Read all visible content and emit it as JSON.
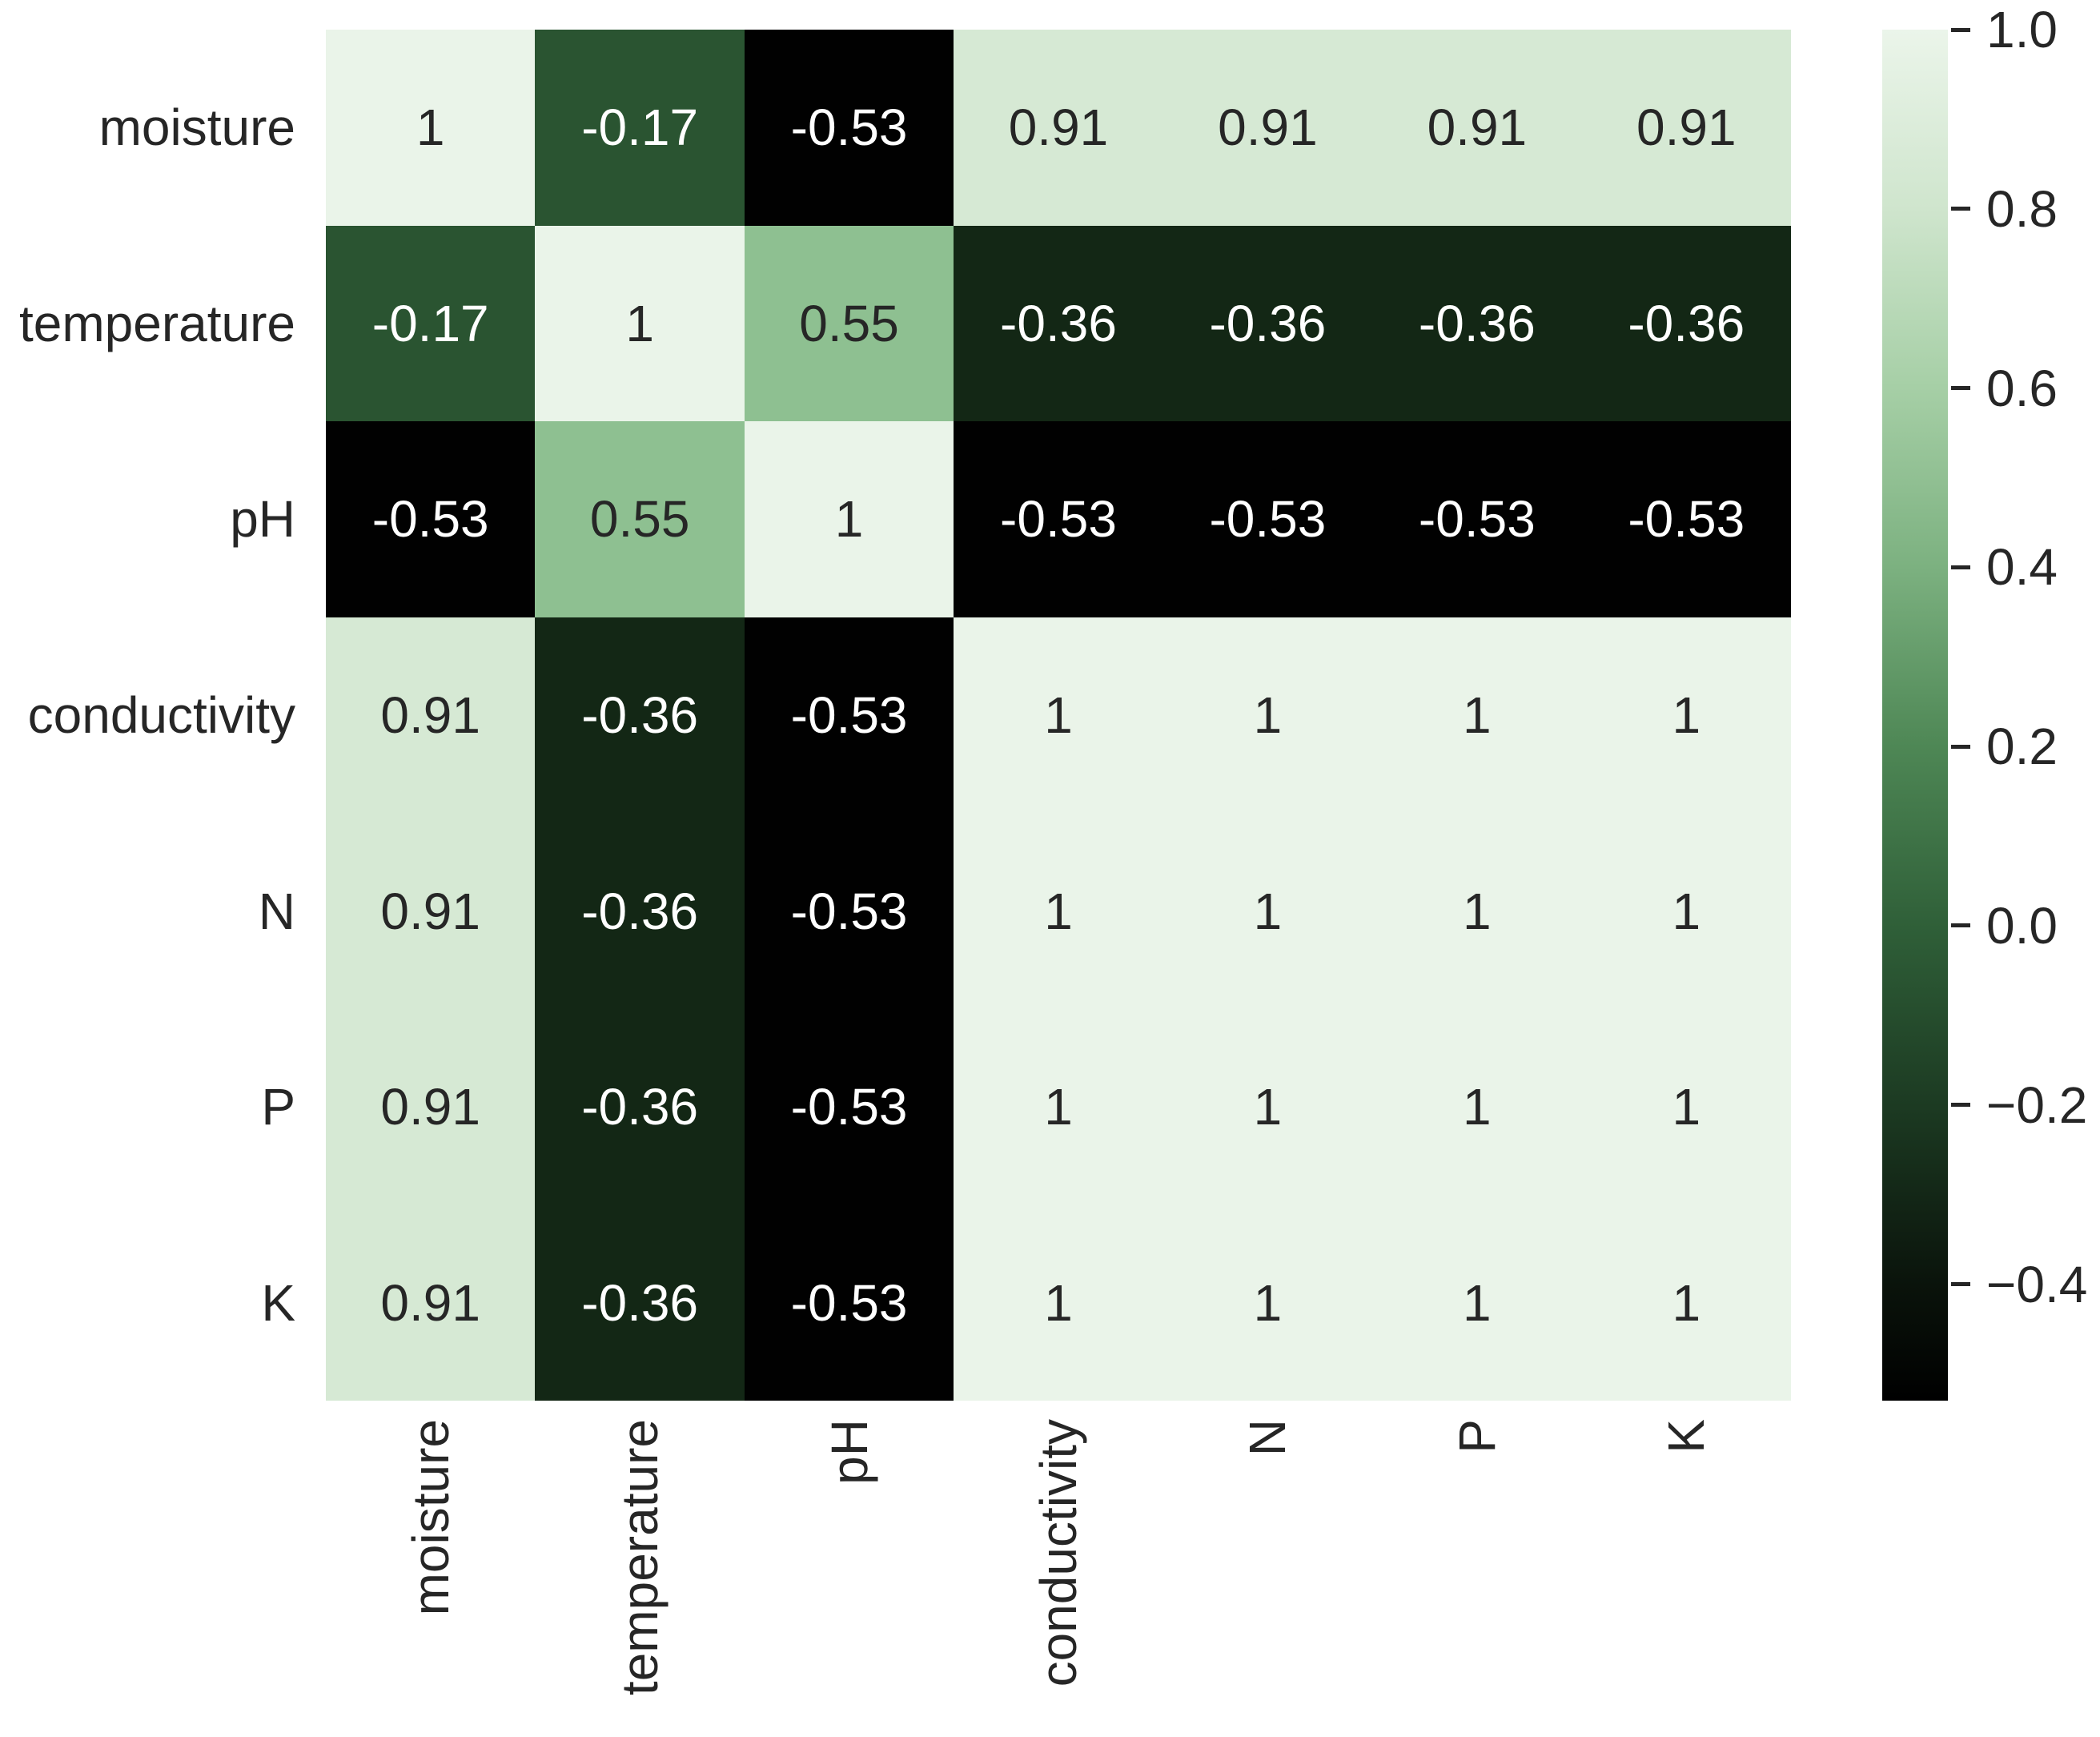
{
  "chart_data": {
    "type": "heatmap",
    "title": "",
    "x_tick_labels": [
      "moisture",
      "temperature",
      "pH",
      "conductivity",
      "N",
      "P",
      "K"
    ],
    "y_tick_labels": [
      "moisture",
      "temperature",
      "pH",
      "conductivity",
      "N",
      "P",
      "K"
    ],
    "matrix": [
      [
        1,
        -0.17,
        -0.53,
        0.91,
        0.91,
        0.91,
        0.91
      ],
      [
        -0.17,
        1,
        0.55,
        -0.36,
        -0.36,
        -0.36,
        -0.36
      ],
      [
        -0.53,
        0.55,
        1,
        -0.53,
        -0.53,
        -0.53,
        -0.53
      ],
      [
        0.91,
        -0.36,
        -0.53,
        1,
        1,
        1,
        1
      ],
      [
        0.91,
        -0.36,
        -0.53,
        1,
        1,
        1,
        1
      ],
      [
        0.91,
        -0.36,
        -0.53,
        1,
        1,
        1,
        1
      ],
      [
        0.91,
        -0.36,
        -0.53,
        1,
        1,
        1,
        1
      ]
    ],
    "cell_annotations": [
      [
        "1",
        "-0.17",
        "-0.53",
        "0.91",
        "0.91",
        "0.91",
        "0.91"
      ],
      [
        "-0.17",
        "1",
        "0.55",
        "-0.36",
        "-0.36",
        "-0.36",
        "-0.36"
      ],
      [
        "-0.53",
        "0.55",
        "1",
        "-0.53",
        "-0.53",
        "-0.53",
        "-0.53"
      ],
      [
        "0.91",
        "-0.36",
        "-0.53",
        "1",
        "1",
        "1",
        "1"
      ],
      [
        "0.91",
        "-0.36",
        "-0.53",
        "1",
        "1",
        "1",
        "1"
      ],
      [
        "0.91",
        "-0.36",
        "-0.53",
        "1",
        "1",
        "1",
        "1"
      ],
      [
        "0.91",
        "-0.36",
        "-0.53",
        "1",
        "1",
        "1",
        "1"
      ]
    ],
    "grid": "off",
    "legend_position": "colorbar-right",
    "colors": {
      "background": "#ffffff",
      "axis_label_text": "#262626",
      "annot_text_on_light": "#262626",
      "annot_text_on_dark": "#ffffff",
      "value_colors": {
        "1": "#eaf4e9",
        "0.91": "#d6e9d4",
        "0.55": "#8ec091",
        "-0.17": "#2a5431",
        "-0.36": "#132715",
        "-0.53": "#010101"
      }
    },
    "colorbar": {
      "vmin": -0.53,
      "vmax": 1.0,
      "tick_values": [
        1.0,
        0.8,
        0.6,
        0.4,
        0.2,
        0.0,
        -0.2,
        -0.4
      ],
      "tick_labels": [
        "1.0",
        "0.8",
        "0.6",
        "0.4",
        "0.2",
        "0.0",
        "−0.2",
        "−0.4"
      ],
      "gradient_stops": [
        {
          "pos": 0.0,
          "color": "#ebf5ea"
        },
        {
          "pos": 13.1,
          "color": "#cfe5cd"
        },
        {
          "pos": 26.1,
          "color": "#a6cfa6"
        },
        {
          "pos": 39.2,
          "color": "#7cb180"
        },
        {
          "pos": 52.3,
          "color": "#4e8755"
        },
        {
          "pos": 65.5,
          "color": "#2f5f38"
        },
        {
          "pos": 78.6,
          "color": "#1c3a22"
        },
        {
          "pos": 91.6,
          "color": "#0a130b"
        },
        {
          "pos": 100.0,
          "color": "#000000"
        }
      ]
    }
  }
}
